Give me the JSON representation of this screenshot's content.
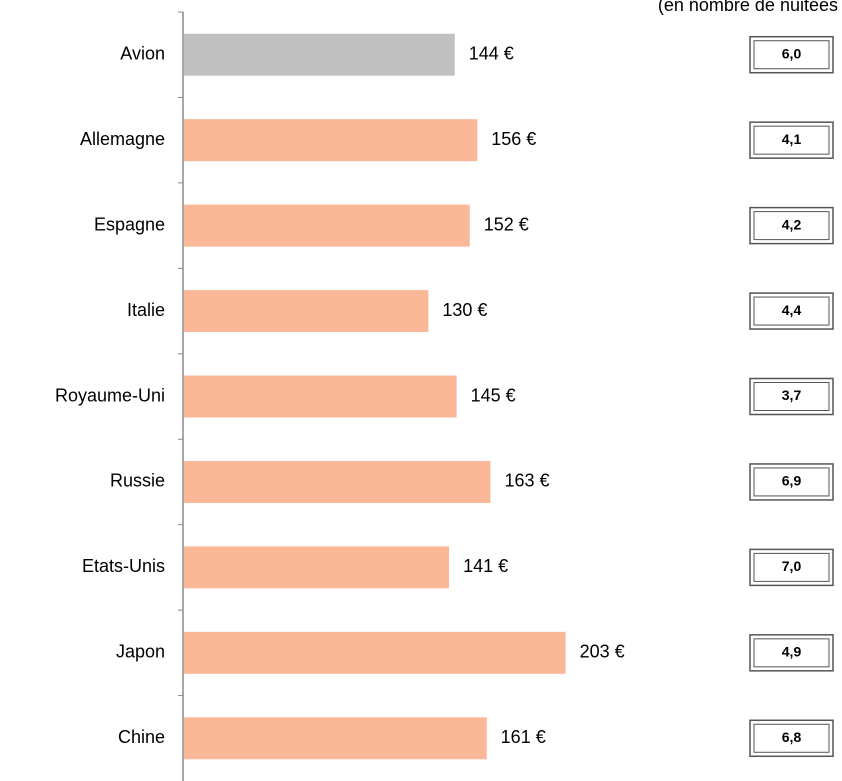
{
  "chart_data": {
    "type": "hbar",
    "note": "(en nombre de nuitées",
    "categories": [
      "Avion",
      "Allemagne",
      "Espagne",
      "Italie",
      "Royaume-Uni",
      "Russie",
      "Etats-Unis",
      "Japon",
      "Chine"
    ],
    "values": [
      144,
      156,
      152,
      130,
      145,
      163,
      141,
      203,
      161
    ],
    "value_labels": [
      "144 €",
      "156 €",
      "152 €",
      "130 €",
      "145 €",
      "163 €",
      "141 €",
      "203 €",
      "161 €"
    ],
    "colors": [
      "#c0c0c0",
      "#fbb899",
      "#fbb899",
      "#fbb899",
      "#fbb899",
      "#fbb899",
      "#fbb899",
      "#fbb899",
      "#fbb899"
    ],
    "side_values": [
      6.0,
      4.1,
      4.2,
      4.4,
      3.7,
      6.9,
      7.0,
      4.9,
      6.8
    ],
    "side_labels": [
      "6,0",
      "4,1",
      "4,2",
      "4,4",
      "3,7",
      "6,9",
      "7,0",
      "4,9",
      "6,8"
    ],
    "xlim": [
      0,
      300
    ]
  }
}
